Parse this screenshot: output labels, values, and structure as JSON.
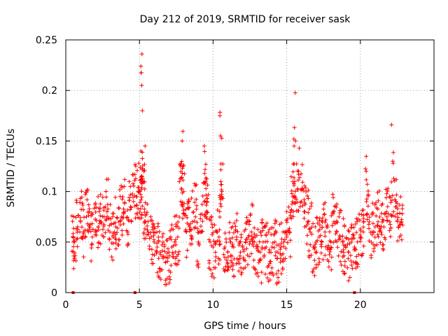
{
  "chart_data": {
    "type": "scatter",
    "title": "Day 212 of 2019, SRMTID for receiver sask",
    "xlabel": "GPS time / hours",
    "ylabel": "SRMTID / TECUs",
    "xlim": [
      0,
      25
    ],
    "ylim": [
      0,
      0.25
    ],
    "xticks": [
      "0",
      "5",
      "10",
      "15",
      "20"
    ],
    "yticks": [
      "0",
      "0.05",
      "0.1",
      "0.15",
      "0.2",
      "0.25"
    ],
    "grid": true,
    "marker": "+",
    "color": "#ff0000",
    "series": [
      {
        "name": "SRMTID",
        "x": [
          0.5,
          0.6,
          0.8,
          1.0,
          1.2,
          1.4,
          1.6,
          1.8,
          2.0,
          2.2,
          2.4,
          2.6,
          2.8,
          3.0,
          3.2,
          3.4,
          3.6,
          3.8,
          4.0,
          4.2,
          4.4,
          4.6,
          4.8,
          5.0,
          5.1,
          5.15,
          5.2,
          5.3,
          5.4,
          5.6,
          5.8,
          6.0,
          6.2,
          6.4,
          6.6,
          6.8,
          7.0,
          7.2,
          7.4,
          7.6,
          7.8,
          7.9,
          8.0,
          8.2,
          8.4,
          8.6,
          8.8,
          9.0,
          9.2,
          9.4,
          9.5,
          9.6,
          9.8,
          10.0,
          10.2,
          10.4,
          10.5,
          10.6,
          10.8,
          11.0,
          11.2,
          11.4,
          11.6,
          11.8,
          12.0,
          12.2,
          12.4,
          12.6,
          12.8,
          13.0,
          13.2,
          13.4,
          13.6,
          13.8,
          14.0,
          14.2,
          14.4,
          14.6,
          14.8,
          15.0,
          15.2,
          15.4,
          15.5,
          15.6,
          15.8,
          16.0,
          16.2,
          16.4,
          16.6,
          16.8,
          17.0,
          17.2,
          17.4,
          17.6,
          17.8,
          18.0,
          18.2,
          18.4,
          18.6,
          18.8,
          19.0,
          19.2,
          19.4,
          19.6,
          19.8,
          20.0,
          20.2,
          20.4,
          20.6,
          20.8,
          21.0,
          21.2,
          21.4,
          21.6,
          21.8,
          22.0,
          22.2,
          22.4,
          22.6,
          22.8
        ],
        "y": [
          0.055,
          0.05,
          0.065,
          0.07,
          0.06,
          0.075,
          0.08,
          0.055,
          0.06,
          0.065,
          0.07,
          0.075,
          0.08,
          0.06,
          0.055,
          0.065,
          0.07,
          0.075,
          0.08,
          0.06,
          0.085,
          0.09,
          0.095,
          0.1,
          0.14,
          0.205,
          0.18,
          0.12,
          0.07,
          0.06,
          0.055,
          0.05,
          0.045,
          0.04,
          0.05,
          0.035,
          0.04,
          0.045,
          0.05,
          0.055,
          0.09,
          0.15,
          0.1,
          0.06,
          0.065,
          0.07,
          0.075,
          0.05,
          0.06,
          0.145,
          0.11,
          0.09,
          0.05,
          0.045,
          0.05,
          0.055,
          0.155,
          0.1,
          0.045,
          0.04,
          0.05,
          0.045,
          0.055,
          0.05,
          0.045,
          0.05,
          0.055,
          0.06,
          0.05,
          0.045,
          0.04,
          0.05,
          0.045,
          0.04,
          0.045,
          0.05,
          0.04,
          0.045,
          0.05,
          0.055,
          0.06,
          0.09,
          0.145,
          0.15,
          0.12,
          0.09,
          0.08,
          0.07,
          0.06,
          0.045,
          0.05,
          0.055,
          0.05,
          0.06,
          0.045,
          0.05,
          0.07,
          0.06,
          0.055,
          0.05,
          0.045,
          0.04,
          0.05,
          0.045,
          0.05,
          0.055,
          0.06,
          0.12,
          0.07,
          0.06,
          0.065,
          0.07,
          0.06,
          0.065,
          0.075,
          0.07,
          0.13,
          0.09,
          0.065,
          0.07
        ],
        "min_spread": 0.02
      }
    ],
    "zero_markers_x": [
      0.5,
      4.7,
      19.6
    ]
  }
}
